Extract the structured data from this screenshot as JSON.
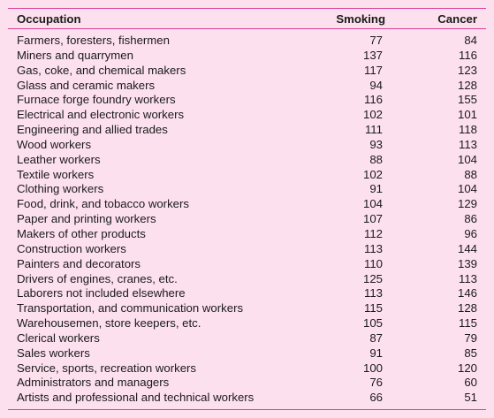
{
  "table": {
    "headers": {
      "occupation": "Occupation",
      "smoking": "Smoking",
      "cancer": "Cancer"
    },
    "rows": [
      {
        "occupation": "Farmers, foresters, fishermen",
        "smoking": "77",
        "cancer": "84"
      },
      {
        "occupation": "Miners and quarrymen",
        "smoking": "137",
        "cancer": "116"
      },
      {
        "occupation": "Gas, coke, and chemical makers",
        "smoking": "117",
        "cancer": "123"
      },
      {
        "occupation": "Glass and ceramic makers",
        "smoking": "94",
        "cancer": "128"
      },
      {
        "occupation": "Furnace forge foundry workers",
        "smoking": "116",
        "cancer": "155"
      },
      {
        "occupation": "Electrical and electronic workers",
        "smoking": "102",
        "cancer": "101"
      },
      {
        "occupation": "Engineering and allied trades",
        "smoking": "111",
        "cancer": "118"
      },
      {
        "occupation": "Wood workers",
        "smoking": "93",
        "cancer": "113"
      },
      {
        "occupation": "Leather workers",
        "smoking": "88",
        "cancer": "104"
      },
      {
        "occupation": "Textile workers",
        "smoking": "102",
        "cancer": "88"
      },
      {
        "occupation": "Clothing workers",
        "smoking": "91",
        "cancer": "104"
      },
      {
        "occupation": "Food, drink, and tobacco workers",
        "smoking": "104",
        "cancer": "129"
      },
      {
        "occupation": "Paper and printing workers",
        "smoking": "107",
        "cancer": "86"
      },
      {
        "occupation": "Makers of other products",
        "smoking": "112",
        "cancer": "96"
      },
      {
        "occupation": "Construction workers",
        "smoking": "113",
        "cancer": "144"
      },
      {
        "occupation": "Painters and decorators",
        "smoking": "110",
        "cancer": "139"
      },
      {
        "occupation": "Drivers of engines, cranes, etc.",
        "smoking": "125",
        "cancer": "113"
      },
      {
        "occupation": "Laborers not included elsewhere",
        "smoking": "113",
        "cancer": "146"
      },
      {
        "occupation": "Transportation, and communication workers",
        "smoking": "115",
        "cancer": "128"
      },
      {
        "occupation": "Warehousemen, store keepers, etc.",
        "smoking": "105",
        "cancer": "115"
      },
      {
        "occupation": "Clerical workers",
        "smoking": "87",
        "cancer": "79"
      },
      {
        "occupation": "Sales workers",
        "smoking": "91",
        "cancer": "85"
      },
      {
        "occupation": "Service, sports, recreation workers",
        "smoking": "100",
        "cancer": "120"
      },
      {
        "occupation": "Administrators and managers",
        "smoking": "76",
        "cancer": "60"
      },
      {
        "occupation": "Artists and professional and technical workers",
        "smoking": "66",
        "cancer": "51"
      }
    ]
  },
  "colors": {
    "background": "#fde0ee",
    "rule": "#d9439a",
    "text": "#1a1a1a"
  }
}
